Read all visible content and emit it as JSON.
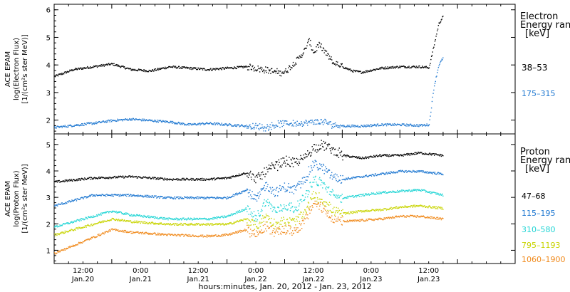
{
  "figure": {
    "xlabel": "hours:minutes, Jan. 20, 2012 - Jan. 23, 2012",
    "x_ticks": [
      {
        "time": "12:00",
        "date": "Jan.20"
      },
      {
        "time": "0:00",
        "date": "Jan.21"
      },
      {
        "time": "12:00",
        "date": "Jan.21"
      },
      {
        "time": "0:00",
        "date": "Jan.22"
      },
      {
        "time": "12:00",
        "date": "Jan.22"
      },
      {
        "time": "0:00",
        "date": "Jan.23"
      },
      {
        "time": "12:00",
        "date": "Jan.23"
      }
    ]
  },
  "chart_data": [
    {
      "type": "scatter",
      "panel": "electron",
      "ylabel_lines": [
        "ACE EPAM",
        "log(Electron Flux)",
        "[1/(cm²s ster MeV)]"
      ],
      "legend_title": [
        "Electron",
        "Energy ran",
        "[keV]"
      ],
      "ylim": [
        1.5,
        6.2
      ],
      "y_ticks": [
        2,
        3,
        4,
        5,
        6
      ],
      "xlim_hours": [
        0,
        96
      ],
      "series": [
        {
          "name": "38–53",
          "color": "#000000",
          "points": [
            [
              0,
              3.6
            ],
            [
              4,
              3.85
            ],
            [
              8,
              3.95
            ],
            [
              12,
              4.05
            ],
            [
              16,
              3.85
            ],
            [
              20,
              3.8
            ],
            [
              24,
              3.95
            ],
            [
              28,
              3.9
            ],
            [
              32,
              3.85
            ],
            [
              36,
              3.9
            ],
            [
              40,
              3.95
            ],
            [
              44,
              3.85
            ],
            [
              46,
              3.75
            ],
            [
              48,
              3.75
            ],
            [
              50,
              4.1
            ],
            [
              52,
              4.5
            ],
            [
              53,
              4.9
            ],
            [
              54,
              4.45
            ],
            [
              55,
              4.75
            ],
            [
              56,
              4.55
            ],
            [
              58,
              4.1
            ],
            [
              62,
              3.8
            ],
            [
              64,
              3.75
            ],
            [
              68,
              3.9
            ],
            [
              72,
              3.95
            ],
            [
              76,
              3.95
            ],
            [
              78,
              3.92
            ],
            [
              79,
              4.7
            ],
            [
              80,
              5.5
            ],
            [
              81,
              5.8
            ]
          ]
        },
        {
          "name": "175–315",
          "color": "#1f78d1",
          "points": [
            [
              0,
              1.75
            ],
            [
              8,
              1.9
            ],
            [
              12,
              2.0
            ],
            [
              16,
              2.05
            ],
            [
              20,
              2.0
            ],
            [
              24,
              1.95
            ],
            [
              28,
              1.85
            ],
            [
              32,
              1.9
            ],
            [
              36,
              1.85
            ],
            [
              40,
              1.8
            ],
            [
              44,
              1.75
            ],
            [
              46,
              1.85
            ],
            [
              48,
              1.9
            ],
            [
              52,
              1.9
            ],
            [
              54,
              1.95
            ],
            [
              56,
              1.95
            ],
            [
              58,
              1.85
            ],
            [
              60,
              1.8
            ],
            [
              64,
              1.8
            ],
            [
              68,
              1.85
            ],
            [
              72,
              1.85
            ],
            [
              76,
              1.82
            ],
            [
              78,
              1.85
            ],
            [
              79,
              3.2
            ],
            [
              80,
              4.0
            ],
            [
              81,
              4.3
            ]
          ]
        }
      ]
    },
    {
      "type": "scatter",
      "panel": "proton",
      "ylabel_lines": [
        "ACE EPAM",
        "log(Proton Flux)",
        "[1/(cm²s ster MeV)]"
      ],
      "legend_title": [
        "Proton",
        "Energy ran",
        "[keV]"
      ],
      "ylim": [
        0.5,
        5.4
      ],
      "y_ticks": [
        1,
        2,
        3,
        4,
        5
      ],
      "xlim_hours": [
        0,
        96
      ],
      "series": [
        {
          "name": "47–68",
          "color": "#000000",
          "points": [
            [
              0,
              3.6
            ],
            [
              8,
              3.75
            ],
            [
              16,
              3.8
            ],
            [
              24,
              3.7
            ],
            [
              32,
              3.7
            ],
            [
              36,
              3.75
            ],
            [
              40,
              3.95
            ],
            [
              42,
              3.7
            ],
            [
              44,
              4.0
            ],
            [
              46,
              4.2
            ],
            [
              48,
              4.4
            ],
            [
              50,
              4.3
            ],
            [
              52,
              4.5
            ],
            [
              54,
              4.9
            ],
            [
              56,
              5.0
            ],
            [
              58,
              4.8
            ],
            [
              60,
              4.6
            ],
            [
              64,
              4.5
            ],
            [
              68,
              4.6
            ],
            [
              72,
              4.6
            ],
            [
              76,
              4.7
            ],
            [
              81,
              4.6
            ]
          ]
        },
        {
          "name": "115–195",
          "color": "#1f78d1",
          "points": [
            [
              0,
              2.7
            ],
            [
              8,
              3.1
            ],
            [
              16,
              3.1
            ],
            [
              24,
              3.0
            ],
            [
              32,
              3.0
            ],
            [
              36,
              3.0
            ],
            [
              40,
              3.3
            ],
            [
              42,
              2.9
            ],
            [
              44,
              3.5
            ],
            [
              46,
              3.2
            ],
            [
              48,
              3.4
            ],
            [
              50,
              3.3
            ],
            [
              52,
              3.7
            ],
            [
              54,
              4.3
            ],
            [
              56,
              4.1
            ],
            [
              58,
              3.8
            ],
            [
              60,
              3.7
            ],
            [
              64,
              3.8
            ],
            [
              68,
              3.9
            ],
            [
              72,
              4.0
            ],
            [
              76,
              4.0
            ],
            [
              81,
              3.9
            ]
          ]
        },
        {
          "name": "310–580",
          "color": "#22d5d5",
          "points": [
            [
              0,
              1.9
            ],
            [
              8,
              2.3
            ],
            [
              12,
              2.5
            ],
            [
              16,
              2.35
            ],
            [
              24,
              2.2
            ],
            [
              32,
              2.2
            ],
            [
              36,
              2.3
            ],
            [
              40,
              2.6
            ],
            [
              42,
              2.2
            ],
            [
              44,
              2.9
            ],
            [
              46,
              2.5
            ],
            [
              48,
              2.7
            ],
            [
              50,
              2.6
            ],
            [
              52,
              3.0
            ],
            [
              54,
              3.7
            ],
            [
              56,
              3.5
            ],
            [
              58,
              3.1
            ],
            [
              60,
              3.0
            ],
            [
              64,
              3.1
            ],
            [
              68,
              3.2
            ],
            [
              72,
              3.25
            ],
            [
              76,
              3.3
            ],
            [
              81,
              3.1
            ]
          ]
        },
        {
          "name": "795–1193",
          "color": "#c8d400",
          "points": [
            [
              0,
              1.6
            ],
            [
              8,
              2.0
            ],
            [
              12,
              2.2
            ],
            [
              16,
              2.1
            ],
            [
              24,
              2.0
            ],
            [
              32,
              2.0
            ],
            [
              36,
              2.0
            ],
            [
              40,
              2.2
            ],
            [
              42,
              1.9
            ],
            [
              44,
              2.3
            ],
            [
              46,
              2.0
            ],
            [
              48,
              2.1
            ],
            [
              50,
              2.1
            ],
            [
              52,
              2.4
            ],
            [
              54,
              3.1
            ],
            [
              56,
              2.9
            ],
            [
              58,
              2.5
            ],
            [
              60,
              2.4
            ],
            [
              64,
              2.5
            ],
            [
              68,
              2.55
            ],
            [
              72,
              2.65
            ],
            [
              76,
              2.7
            ],
            [
              81,
              2.6
            ]
          ]
        },
        {
          "name": "1060–1900",
          "color": "#f08a1c",
          "points": [
            [
              0,
              0.9
            ],
            [
              8,
              1.5
            ],
            [
              12,
              1.8
            ],
            [
              16,
              1.7
            ],
            [
              24,
              1.6
            ],
            [
              32,
              1.55
            ],
            [
              36,
              1.6
            ],
            [
              40,
              1.8
            ],
            [
              42,
              1.6
            ],
            [
              44,
              1.9
            ],
            [
              46,
              1.7
            ],
            [
              48,
              1.8
            ],
            [
              50,
              1.75
            ],
            [
              52,
              2.1
            ],
            [
              54,
              2.8
            ],
            [
              56,
              2.6
            ],
            [
              58,
              2.2
            ],
            [
              60,
              2.1
            ],
            [
              64,
              2.15
            ],
            [
              68,
              2.2
            ],
            [
              72,
              2.3
            ],
            [
              76,
              2.3
            ],
            [
              81,
              2.2
            ]
          ]
        }
      ]
    }
  ]
}
